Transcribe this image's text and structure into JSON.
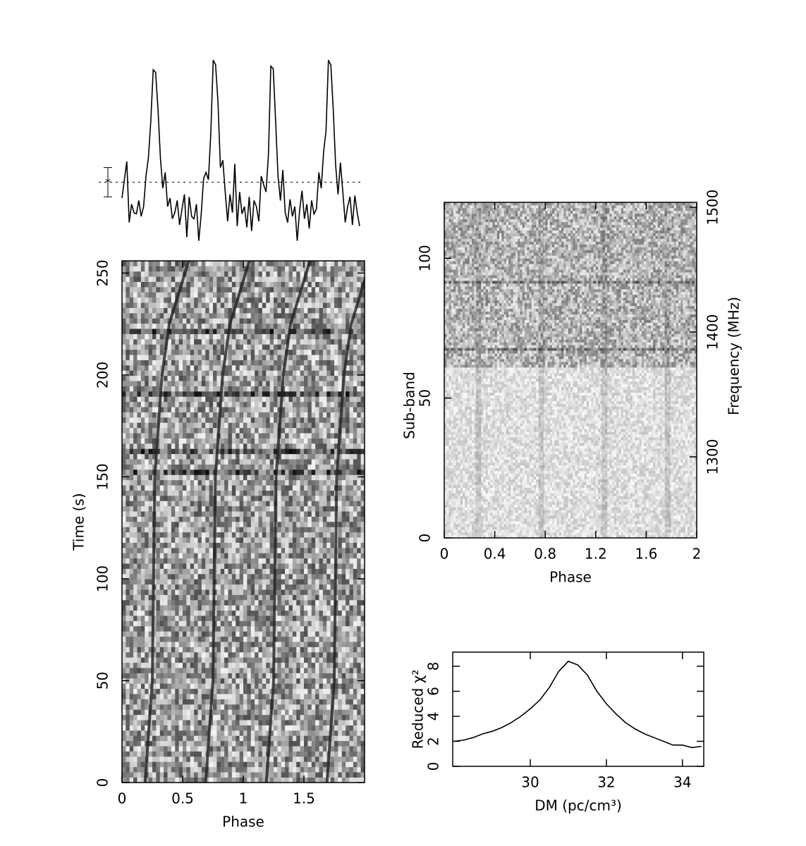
{
  "chart_data": [
    {
      "type": "line",
      "values": [
        -1.3,
        0.2,
        1.7,
        -3.3,
        -1.8,
        -2.5,
        -2.6,
        -1.5,
        -2.8,
        -2,
        0.5,
        2,
        5,
        9.2,
        9,
        6,
        2,
        -0.5,
        0.8,
        -2,
        -1.3,
        -3,
        -2.5,
        -1.5,
        -3.5,
        -2.2,
        -1,
        -4.5,
        -1.2,
        -2.8,
        -3,
        -1.8,
        -4.8,
        -2.6,
        0.3,
        0.8,
        0.2,
        4,
        10,
        9.6,
        6.5,
        1.2,
        1.8,
        -0.8,
        -3.2,
        -1,
        -2.5,
        1.5,
        -3.6,
        -0.8,
        -2.6,
        -2,
        -3.7,
        -1.2,
        -4,
        -1.5,
        -2,
        -3.2,
        0.5,
        -0.2,
        -0.8,
        2.2,
        9.5,
        9.3,
        5,
        0.5,
        -1.5,
        1,
        -2.5,
        -3.3,
        -1.4,
        -2.8,
        -2,
        -4.8,
        -2.3,
        -0.7,
        -3,
        -1.8,
        -3.8,
        -1.5,
        -2.6,
        -2.2,
        0.8,
        -0.5,
        2.5,
        4.2,
        10,
        9.6,
        6,
        1.4,
        -1,
        1.6,
        -0.8,
        -3.3,
        -2,
        -1.2,
        -3.5,
        -1.1,
        -2.5,
        -3.6
      ],
      "baseline": 0,
      "error": 1.2,
      "ylim": [
        -5,
        10.3
      ],
      "color": "#000000"
    },
    {
      "type": "heatmap",
      "xlabel": "Phase",
      "ylabel": "Time (s)",
      "xlim": [
        0,
        2
      ],
      "xticks": [
        0,
        0.5,
        1,
        1.5
      ],
      "ylim": [
        0,
        256
      ],
      "yticks": [
        0,
        50,
        100,
        150,
        200,
        250
      ],
      "track_time": [
        0,
        50,
        100,
        150,
        200,
        225,
        256
      ],
      "tracks": [
        [
          0.19,
          0.25,
          0.26,
          0.27,
          0.33,
          0.39,
          0.55
        ],
        [
          0.69,
          0.75,
          0.76,
          0.77,
          0.83,
          0.89,
          1.05
        ],
        [
          1.19,
          1.25,
          1.26,
          1.27,
          1.33,
          1.39,
          1.55
        ],
        [
          1.69,
          1.75,
          1.76,
          1.77,
          1.83,
          1.89,
          2.05
        ]
      ]
    },
    {
      "type": "heatmap",
      "xlabel": "Phase",
      "ylabel": "Sub-band",
      "y2label": "Frequency (MHz)",
      "xlim": [
        0,
        2
      ],
      "xticks": [
        0,
        0.4,
        0.8,
        1.2,
        1.6,
        2
      ],
      "ylim": [
        0,
        120
      ],
      "yticks": [
        0,
        50,
        100
      ],
      "y2lim": [
        1235,
        1504
      ],
      "y2ticks": [
        1300,
        1400,
        1500
      ],
      "pulse_phases": [
        0.27,
        0.77,
        1.27,
        1.77
      ]
    },
    {
      "type": "line",
      "xlabel": "DM (pc/cm³)",
      "ylabel": "Reduced χ²",
      "x": [
        28.0,
        28.25,
        28.5,
        28.75,
        29.0,
        29.25,
        29.5,
        29.75,
        30.0,
        30.25,
        30.5,
        30.75,
        31.0,
        31.25,
        31.5,
        31.75,
        32.0,
        32.25,
        32.5,
        32.75,
        33.0,
        33.25,
        33.5,
        33.75,
        34.0,
        34.25,
        34.5
      ],
      "values": [
        2.0,
        2.1,
        2.3,
        2.6,
        2.8,
        3.1,
        3.5,
        4.0,
        4.6,
        5.3,
        6.3,
        7.6,
        8.4,
        8.1,
        7.3,
        6.0,
        5.0,
        4.2,
        3.5,
        3.0,
        2.6,
        2.3,
        2.0,
        1.7,
        1.7,
        1.5,
        1.6
      ],
      "xlim": [
        27.96,
        34.56
      ],
      "xticks": [
        30,
        32,
        34
      ],
      "ylim": [
        0,
        9.13
      ],
      "yticks": [
        0,
        2,
        4,
        6,
        8
      ],
      "color": "#000000"
    }
  ]
}
